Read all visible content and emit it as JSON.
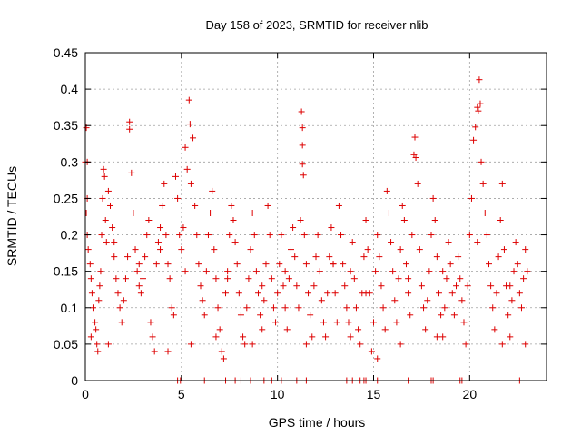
{
  "chart_data": {
    "type": "scatter",
    "title": "Day 158 of 2023, SRMTID for receiver nlib",
    "xlabel": "GPS time / hours",
    "ylabel": "SRMTID / TECUs",
    "xlim": [
      0,
      24
    ],
    "ylim": [
      0,
      0.45
    ],
    "xticks": [
      0,
      5,
      10,
      15,
      20
    ],
    "yticks": [
      0,
      0.05,
      0.1,
      0.15,
      0.2,
      0.25,
      0.3,
      0.35,
      0.4,
      0.45
    ],
    "ytick_labels": [
      "0",
      "0.05",
      "0.1",
      "0.15",
      "0.2",
      "0.25",
      "0.3",
      "0.35",
      "0.4",
      "0.45"
    ],
    "xtick_labels": [
      "0",
      "5",
      "10",
      "15",
      "20"
    ],
    "grid": true,
    "marker": "+",
    "color": "#dd0000",
    "points": [
      [
        0.0,
        0.3
      ],
      [
        0.05,
        0.347
      ],
      [
        0.1,
        0.3
      ],
      [
        0.1,
        0.25
      ],
      [
        0.05,
        0.23
      ],
      [
        0.1,
        0.2
      ],
      [
        0.15,
        0.18
      ],
      [
        0.25,
        0.16
      ],
      [
        0.3,
        0.14
      ],
      [
        0.35,
        0.12
      ],
      [
        0.4,
        0.1
      ],
      [
        0.5,
        0.08
      ],
      [
        0.55,
        0.07
      ],
      [
        0.6,
        0.05
      ],
      [
        0.65,
        0.04
      ],
      [
        0.7,
        0.11
      ],
      [
        0.75,
        0.13
      ],
      [
        0.8,
        0.15
      ],
      [
        0.85,
        0.2
      ],
      [
        0.9,
        0.25
      ],
      [
        0.95,
        0.29
      ],
      [
        1.0,
        0.28
      ],
      [
        1.05,
        0.22
      ],
      [
        1.1,
        0.19
      ],
      [
        1.2,
        0.26
      ],
      [
        1.3,
        0.24
      ],
      [
        1.4,
        0.21
      ],
      [
        1.5,
        0.17
      ],
      [
        1.6,
        0.14
      ],
      [
        1.7,
        0.12
      ],
      [
        1.8,
        0.1
      ],
      [
        1.9,
        0.08
      ],
      [
        2.0,
        0.11
      ],
      [
        2.1,
        0.14
      ],
      [
        2.2,
        0.17
      ],
      [
        2.3,
        0.355
      ],
      [
        2.3,
        0.345
      ],
      [
        2.4,
        0.285
      ],
      [
        2.5,
        0.23
      ],
      [
        2.6,
        0.18
      ],
      [
        2.7,
        0.15
      ],
      [
        2.8,
        0.13
      ],
      [
        2.9,
        0.12
      ],
      [
        3.0,
        0.14
      ],
      [
        3.1,
        0.17
      ],
      [
        3.2,
        0.2
      ],
      [
        3.3,
        0.22
      ],
      [
        3.4,
        0.08
      ],
      [
        3.5,
        0.06
      ],
      [
        3.6,
        0.04
      ],
      [
        3.7,
        0.16
      ],
      [
        3.8,
        0.19
      ],
      [
        3.9,
        0.21
      ],
      [
        4.0,
        0.24
      ],
      [
        4.1,
        0.27
      ],
      [
        4.2,
        0.2
      ],
      [
        4.3,
        0.16
      ],
      [
        4.4,
        0.14
      ],
      [
        4.5,
        0.1
      ],
      [
        4.6,
        0.09
      ],
      [
        4.7,
        0.28
      ],
      [
        4.8,
        0.25
      ],
      [
        4.9,
        0.2
      ],
      [
        5.0,
        0.18
      ],
      [
        5.1,
        0.21
      ],
      [
        5.2,
        0.32
      ],
      [
        5.3,
        0.29
      ],
      [
        5.4,
        0.385
      ],
      [
        5.45,
        0.352
      ],
      [
        5.5,
        0.27
      ],
      [
        5.6,
        0.333
      ],
      [
        5.7,
        0.24
      ],
      [
        5.8,
        0.2
      ],
      [
        5.9,
        0.16
      ],
      [
        6.0,
        0.13
      ],
      [
        6.1,
        0.11
      ],
      [
        6.2,
        0.09
      ],
      [
        6.3,
        0.15
      ],
      [
        6.4,
        0.2
      ],
      [
        6.5,
        0.23
      ],
      [
        6.6,
        0.26
      ],
      [
        6.7,
        0.18
      ],
      [
        6.8,
        0.14
      ],
      [
        6.9,
        0.1
      ],
      [
        7.0,
        0.07
      ],
      [
        7.1,
        0.04
      ],
      [
        7.2,
        0.03
      ],
      [
        7.3,
        0.12
      ],
      [
        7.4,
        0.15
      ],
      [
        7.5,
        0.2
      ],
      [
        7.6,
        0.24
      ],
      [
        7.7,
        0.22
      ],
      [
        7.8,
        0.19
      ],
      [
        7.9,
        0.16
      ],
      [
        8.0,
        0.12
      ],
      [
        8.1,
        0.09
      ],
      [
        8.2,
        0.06
      ],
      [
        8.3,
        0.05
      ],
      [
        8.4,
        0.1
      ],
      [
        8.5,
        0.14
      ],
      [
        8.6,
        0.18
      ],
      [
        8.7,
        0.23
      ],
      [
        8.8,
        0.2
      ],
      [
        8.9,
        0.15
      ],
      [
        9.0,
        0.12
      ],
      [
        9.1,
        0.09
      ],
      [
        9.2,
        0.07
      ],
      [
        9.3,
        0.11
      ],
      [
        9.4,
        0.16
      ],
      [
        9.5,
        0.24
      ],
      [
        9.6,
        0.2
      ],
      [
        9.7,
        0.14
      ],
      [
        9.8,
        0.1
      ],
      [
        9.9,
        0.08
      ],
      [
        10.0,
        0.12
      ],
      [
        10.1,
        0.16
      ],
      [
        10.2,
        0.2
      ],
      [
        10.3,
        0.13
      ],
      [
        10.4,
        0.1
      ],
      [
        10.5,
        0.07
      ],
      [
        10.6,
        0.14
      ],
      [
        10.7,
        0.18
      ],
      [
        10.8,
        0.21
      ],
      [
        10.9,
        0.17
      ],
      [
        11.0,
        0.13
      ],
      [
        11.1,
        0.1
      ],
      [
        11.2,
        0.22
      ],
      [
        11.25,
        0.369
      ],
      [
        11.3,
        0.347
      ],
      [
        11.3,
        0.323
      ],
      [
        11.3,
        0.297
      ],
      [
        11.35,
        0.282
      ],
      [
        11.4,
        0.2
      ],
      [
        11.5,
        0.16
      ],
      [
        11.6,
        0.12
      ],
      [
        11.7,
        0.09
      ],
      [
        11.8,
        0.06
      ],
      [
        11.9,
        0.13
      ],
      [
        12.0,
        0.17
      ],
      [
        12.1,
        0.2
      ],
      [
        12.2,
        0.15
      ],
      [
        12.3,
        0.11
      ],
      [
        12.4,
        0.08
      ],
      [
        12.5,
        0.06
      ],
      [
        12.6,
        0.12
      ],
      [
        12.7,
        0.17
      ],
      [
        12.8,
        0.21
      ],
      [
        12.9,
        0.16
      ],
      [
        13.0,
        0.12
      ],
      [
        13.1,
        0.08
      ],
      [
        13.2,
        0.24
      ],
      [
        13.3,
        0.2
      ],
      [
        13.4,
        0.16
      ],
      [
        13.5,
        0.13
      ],
      [
        13.6,
        0.1
      ],
      [
        13.7,
        0.08
      ],
      [
        13.8,
        0.15
      ],
      [
        13.9,
        0.19
      ],
      [
        14.0,
        0.14
      ],
      [
        14.1,
        0.1
      ],
      [
        14.2,
        0.07
      ],
      [
        14.3,
        0.05
      ],
      [
        14.4,
        0.12
      ],
      [
        14.5,
        0.17
      ],
      [
        14.6,
        0.22
      ],
      [
        14.7,
        0.18
      ],
      [
        14.8,
        0.12
      ],
      [
        14.9,
        0.04
      ],
      [
        15.0,
        0.08
      ],
      [
        15.1,
        0.15
      ],
      [
        15.2,
        0.2
      ],
      [
        15.3,
        0.17
      ],
      [
        15.4,
        0.13
      ],
      [
        15.5,
        0.1
      ],
      [
        15.6,
        0.07
      ],
      [
        15.7,
        0.26
      ],
      [
        15.8,
        0.23
      ],
      [
        15.9,
        0.19
      ],
      [
        16.0,
        0.15
      ],
      [
        16.1,
        0.11
      ],
      [
        16.2,
        0.08
      ],
      [
        16.3,
        0.14
      ],
      [
        16.4,
        0.18
      ],
      [
        16.5,
        0.24
      ],
      [
        16.6,
        0.22
      ],
      [
        16.7,
        0.16
      ],
      [
        16.8,
        0.12
      ],
      [
        16.9,
        0.09
      ],
      [
        17.0,
        0.2
      ],
      [
        17.1,
        0.31
      ],
      [
        17.15,
        0.334
      ],
      [
        17.2,
        0.306
      ],
      [
        17.3,
        0.27
      ],
      [
        17.4,
        0.18
      ],
      [
        17.5,
        0.13
      ],
      [
        17.6,
        0.1
      ],
      [
        17.7,
        0.07
      ],
      [
        17.8,
        0.11
      ],
      [
        17.9,
        0.15
      ],
      [
        18.0,
        0.2
      ],
      [
        18.1,
        0.25
      ],
      [
        18.2,
        0.22
      ],
      [
        18.3,
        0.17
      ],
      [
        18.4,
        0.12
      ],
      [
        18.5,
        0.09
      ],
      [
        18.6,
        0.06
      ],
      [
        18.7,
        0.1
      ],
      [
        18.8,
        0.14
      ],
      [
        18.9,
        0.19
      ],
      [
        19.0,
        0.16
      ],
      [
        19.1,
        0.12
      ],
      [
        19.2,
        0.09
      ],
      [
        19.3,
        0.13
      ],
      [
        19.4,
        0.17
      ],
      [
        19.5,
        0.14
      ],
      [
        19.6,
        0.11
      ],
      [
        19.7,
        0.08
      ],
      [
        19.8,
        0.05
      ],
      [
        19.9,
        0.13
      ],
      [
        20.0,
        0.2
      ],
      [
        20.1,
        0.25
      ],
      [
        20.2,
        0.33
      ],
      [
        20.3,
        0.348
      ],
      [
        20.4,
        0.375
      ],
      [
        20.45,
        0.37
      ],
      [
        20.5,
        0.413
      ],
      [
        20.55,
        0.38
      ],
      [
        20.6,
        0.3
      ],
      [
        20.7,
        0.27
      ],
      [
        20.8,
        0.23
      ],
      [
        20.9,
        0.2
      ],
      [
        21.0,
        0.16
      ],
      [
        21.1,
        0.13
      ],
      [
        21.2,
        0.1
      ],
      [
        21.3,
        0.07
      ],
      [
        21.4,
        0.12
      ],
      [
        21.5,
        0.17
      ],
      [
        21.6,
        0.22
      ],
      [
        21.7,
        0.27
      ],
      [
        21.8,
        0.18
      ],
      [
        21.9,
        0.13
      ],
      [
        22.0,
        0.09
      ],
      [
        22.1,
        0.06
      ],
      [
        22.2,
        0.11
      ],
      [
        22.3,
        0.15
      ],
      [
        22.4,
        0.19
      ],
      [
        22.5,
        0.16
      ],
      [
        22.6,
        0.12
      ],
      [
        22.7,
        0.1
      ],
      [
        22.8,
        0.14
      ],
      [
        22.9,
        0.18
      ],
      [
        23.0,
        0.15
      ],
      [
        0.3,
        0.06
      ],
      [
        1.2,
        0.05
      ],
      [
        4.3,
        0.04
      ],
      [
        5.5,
        0.05
      ],
      [
        6.8,
        0.06
      ],
      [
        8.7,
        0.05
      ],
      [
        11.5,
        0.05
      ],
      [
        13.8,
        0.06
      ],
      [
        15.2,
        0.03
      ],
      [
        16.4,
        0.05
      ],
      [
        18.3,
        0.06
      ],
      [
        21.7,
        0.05
      ],
      [
        22.9,
        0.05
      ],
      [
        1.5,
        0.19
      ],
      [
        2.8,
        0.16
      ],
      [
        3.9,
        0.18
      ],
      [
        5.2,
        0.15
      ],
      [
        7.4,
        0.14
      ],
      [
        9.2,
        0.13
      ],
      [
        10.4,
        0.15
      ],
      [
        12.9,
        0.16
      ],
      [
        14.6,
        0.12
      ],
      [
        16.8,
        0.14
      ],
      [
        18.6,
        0.15
      ],
      [
        20.4,
        0.19
      ],
      [
        22.1,
        0.13
      ]
    ],
    "zero_points_x": [
      4.8,
      4.95,
      6.2,
      7.3,
      7.8,
      8.1,
      8.6,
      9.3,
      9.7,
      10.2,
      11.0,
      11.5,
      13.6,
      13.9,
      14.3,
      14.5,
      14.6,
      15.2,
      16.8,
      18.0,
      18.1,
      19.5,
      19.6,
      22.6
    ]
  }
}
